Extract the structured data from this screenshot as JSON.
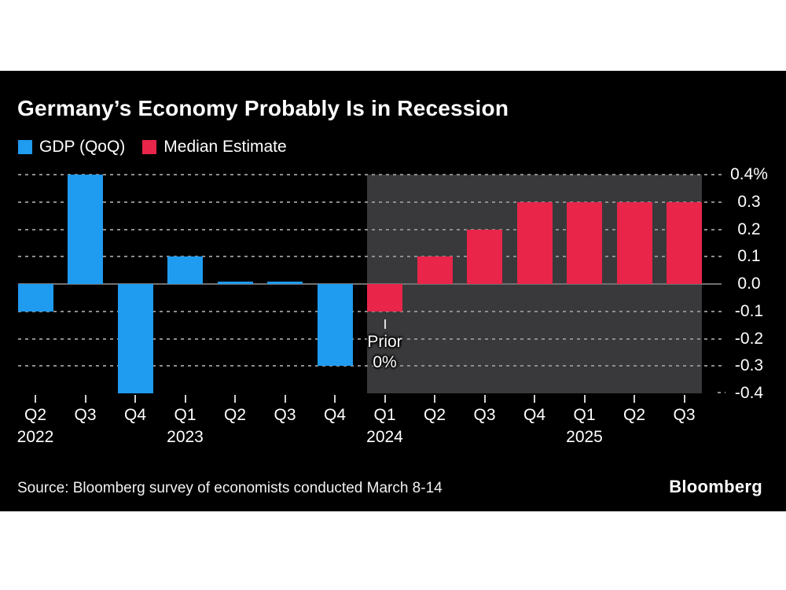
{
  "header": {
    "title": "Germany’s Economy Probably Is in Recession"
  },
  "legend": [
    {
      "label": "GDP (QoQ)",
      "color": "#1f9bf0"
    },
    {
      "label": "Median Estimate",
      "color": "#e9254a"
    }
  ],
  "chart_data": {
    "type": "bar",
    "title": "Germany’s Economy Probably Is in Recession",
    "categories": [
      "Q2 2022",
      "Q3 2022",
      "Q4 2022",
      "Q1 2023",
      "Q2 2023",
      "Q3 2023",
      "Q4 2023",
      "Q1 2024",
      "Q2 2024",
      "Q3 2024",
      "Q4 2024",
      "Q1 2025",
      "Q2 2025",
      "Q3 2025"
    ],
    "x_tick_labels": [
      "Q2",
      "Q3",
      "Q4",
      "Q1",
      "Q2",
      "Q3",
      "Q4",
      "Q1",
      "Q2",
      "Q3",
      "Q4",
      "Q1",
      "Q2",
      "Q3"
    ],
    "year_labels": [
      {
        "text": "2022",
        "index": 0
      },
      {
        "text": "2023",
        "index": 3
      },
      {
        "text": "2024",
        "index": 7
      },
      {
        "text": "2025",
        "index": 11
      }
    ],
    "series": [
      {
        "name": "GDP (QoQ)",
        "color": "#1f9bf0",
        "values": [
          -0.1,
          0.4,
          -0.4,
          0.1,
          0.0,
          0.0,
          -0.3,
          null,
          null,
          null,
          null,
          null,
          null,
          null
        ]
      },
      {
        "name": "Median Estimate",
        "color": "#e9254a",
        "values": [
          null,
          null,
          null,
          null,
          null,
          null,
          null,
          -0.1,
          0.1,
          0.2,
          0.3,
          0.3,
          0.3,
          0.3
        ]
      }
    ],
    "ylim": [
      -0.4,
      0.4
    ],
    "y_ticks": [
      0.4,
      0.3,
      0.2,
      0.1,
      0.0,
      -0.1,
      -0.2,
      -0.3,
      -0.4
    ],
    "y_tick_labels": [
      "0.4%",
      "0.3",
      "0.2",
      "0.1",
      "0.0",
      "-0.1",
      "-0.2",
      "-0.3",
      "-0.4"
    ],
    "grid": "horizontal-dashed",
    "legend_position": "top-left",
    "forecast_band": {
      "from_index": 7,
      "to_index": 13,
      "color": "#39393b"
    },
    "annotation": {
      "index": 7,
      "lines": [
        "Prior",
        "0%"
      ]
    }
  },
  "footer": {
    "source": "Source: Bloomberg survey of economists conducted March 8-14",
    "brand": "Bloomberg"
  },
  "style": {
    "background": "#ffffff",
    "card_background": "#000000",
    "gridline_color": "#8d8d8d",
    "zero_line_color": "#6f6f6f",
    "text_color": "#ffffff"
  }
}
